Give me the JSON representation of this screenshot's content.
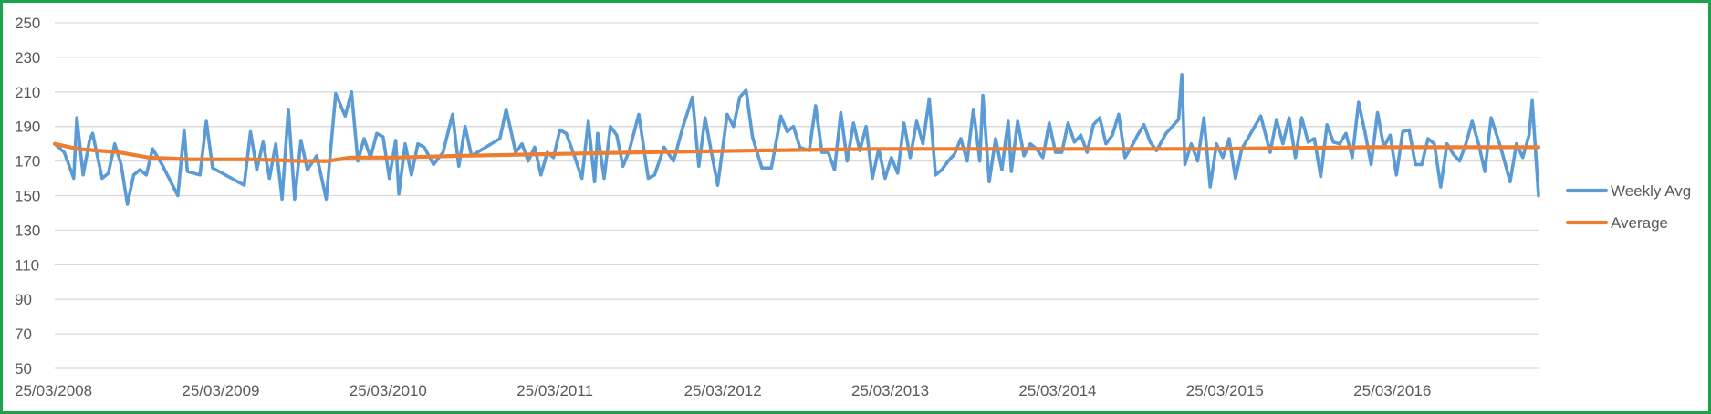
{
  "chart_data": {
    "type": "line",
    "title": "",
    "xlabel": "",
    "ylabel": "",
    "ylim": [
      50,
      250
    ],
    "y_ticks": [
      50,
      70,
      90,
      110,
      130,
      150,
      170,
      190,
      210,
      230,
      250
    ],
    "x_tick_labels": [
      "25/03/2008",
      "25/03/2009",
      "25/03/2010",
      "25/03/2011",
      "25/03/2012",
      "25/03/2013",
      "25/03/2014",
      "25/03/2015",
      "25/03/2016"
    ],
    "x_range": [
      "2008-03-25",
      "2017-03-28"
    ],
    "grid": true,
    "legend": "right",
    "series": [
      {
        "name": "Weekly Avg",
        "color": "#5b9bd5",
        "points": [
          [
            "2008-03-25",
            180
          ],
          [
            "2008-04-15",
            175
          ],
          [
            "2008-05-06",
            160
          ],
          [
            "2008-05-13",
            195
          ],
          [
            "2008-05-27",
            162
          ],
          [
            "2008-06-10",
            182
          ],
          [
            "2008-06-17",
            186
          ],
          [
            "2008-07-08",
            160
          ],
          [
            "2008-07-22",
            163
          ],
          [
            "2008-08-05",
            180
          ],
          [
            "2008-08-19",
            168
          ],
          [
            "2008-09-02",
            145
          ],
          [
            "2008-09-16",
            162
          ],
          [
            "2008-09-30",
            165
          ],
          [
            "2008-10-14",
            162
          ],
          [
            "2008-10-28",
            177
          ],
          [
            "2008-11-18",
            168
          ],
          [
            "2008-12-23",
            150
          ],
          [
            "2009-01-06",
            188
          ],
          [
            "2009-01-13",
            164
          ],
          [
            "2009-02-10",
            162
          ],
          [
            "2009-02-24",
            193
          ],
          [
            "2009-03-10",
            166
          ],
          [
            "2009-05-19",
            156
          ],
          [
            "2009-06-02",
            187
          ],
          [
            "2009-06-16",
            165
          ],
          [
            "2009-06-30",
            181
          ],
          [
            "2009-07-14",
            160
          ],
          [
            "2009-07-28",
            180
          ],
          [
            "2009-08-11",
            148
          ],
          [
            "2009-08-25",
            200
          ],
          [
            "2009-09-08",
            148
          ],
          [
            "2009-09-22",
            182
          ],
          [
            "2009-10-06",
            165
          ],
          [
            "2009-10-27",
            173
          ],
          [
            "2009-11-17",
            148
          ],
          [
            "2009-12-08",
            209
          ],
          [
            "2009-12-29",
            196
          ],
          [
            "2010-01-12",
            210
          ],
          [
            "2010-01-26",
            170
          ],
          [
            "2010-02-09",
            183
          ],
          [
            "2010-02-23",
            172
          ],
          [
            "2010-03-09",
            186
          ],
          [
            "2010-03-23",
            184
          ],
          [
            "2010-04-06",
            160
          ],
          [
            "2010-04-20",
            182
          ],
          [
            "2010-04-27",
            151
          ],
          [
            "2010-05-11",
            180
          ],
          [
            "2010-05-25",
            162
          ],
          [
            "2010-06-08",
            180
          ],
          [
            "2010-06-22",
            178
          ],
          [
            "2010-07-13",
            168
          ],
          [
            "2010-08-03",
            175
          ],
          [
            "2010-08-24",
            197
          ],
          [
            "2010-09-07",
            167
          ],
          [
            "2010-09-21",
            190
          ],
          [
            "2010-10-05",
            173
          ],
          [
            "2010-12-07",
            183
          ],
          [
            "2010-12-21",
            200
          ],
          [
            "2011-01-11",
            175
          ],
          [
            "2011-01-25",
            180
          ],
          [
            "2011-02-08",
            170
          ],
          [
            "2011-02-22",
            178
          ],
          [
            "2011-03-08",
            162
          ],
          [
            "2011-03-22",
            175
          ],
          [
            "2011-04-05",
            172
          ],
          [
            "2011-04-19",
            188
          ],
          [
            "2011-05-03",
            186
          ],
          [
            "2011-05-17",
            176
          ],
          [
            "2011-06-07",
            160
          ],
          [
            "2011-06-21",
            193
          ],
          [
            "2011-07-05",
            158
          ],
          [
            "2011-07-12",
            186
          ],
          [
            "2011-07-26",
            160
          ],
          [
            "2011-08-09",
            190
          ],
          [
            "2011-08-23",
            185
          ],
          [
            "2011-09-06",
            167
          ],
          [
            "2011-09-20",
            176
          ],
          [
            "2011-10-11",
            197
          ],
          [
            "2011-11-01",
            160
          ],
          [
            "2011-11-15",
            162
          ],
          [
            "2011-12-06",
            178
          ],
          [
            "2011-12-27",
            170
          ],
          [
            "2012-01-17",
            190
          ],
          [
            "2012-02-07",
            207
          ],
          [
            "2012-02-21",
            167
          ],
          [
            "2012-03-06",
            195
          ],
          [
            "2012-03-20",
            175
          ],
          [
            "2012-04-03",
            156
          ],
          [
            "2012-04-24",
            197
          ],
          [
            "2012-05-08",
            190
          ],
          [
            "2012-05-22",
            207
          ],
          [
            "2012-06-05",
            211
          ],
          [
            "2012-06-19",
            184
          ],
          [
            "2012-07-10",
            166
          ],
          [
            "2012-07-31",
            166
          ],
          [
            "2012-08-21",
            196
          ],
          [
            "2012-09-04",
            187
          ],
          [
            "2012-09-18",
            190
          ],
          [
            "2012-10-02",
            178
          ],
          [
            "2012-10-23",
            176
          ],
          [
            "2012-11-06",
            202
          ],
          [
            "2012-11-20",
            175
          ],
          [
            "2012-12-04",
            175
          ],
          [
            "2012-12-18",
            165
          ],
          [
            "2013-01-01",
            198
          ],
          [
            "2013-01-15",
            170
          ],
          [
            "2013-01-29",
            192
          ],
          [
            "2013-02-12",
            176
          ],
          [
            "2013-02-26",
            190
          ],
          [
            "2013-03-12",
            160
          ],
          [
            "2013-03-26",
            177
          ],
          [
            "2013-04-09",
            160
          ],
          [
            "2013-04-23",
            172
          ],
          [
            "2013-05-07",
            163
          ],
          [
            "2013-05-21",
            192
          ],
          [
            "2013-06-04",
            172
          ],
          [
            "2013-06-18",
            193
          ],
          [
            "2013-07-02",
            180
          ],
          [
            "2013-07-16",
            206
          ],
          [
            "2013-07-30",
            162
          ],
          [
            "2013-08-13",
            165
          ],
          [
            "2013-08-27",
            170
          ],
          [
            "2013-09-10",
            174
          ],
          [
            "2013-09-24",
            183
          ],
          [
            "2013-10-08",
            170
          ],
          [
            "2013-10-22",
            200
          ],
          [
            "2013-11-05",
            170
          ],
          [
            "2013-11-12",
            208
          ],
          [
            "2013-11-26",
            158
          ],
          [
            "2013-12-10",
            183
          ],
          [
            "2013-12-24",
            165
          ],
          [
            "2014-01-07",
            193
          ],
          [
            "2014-01-14",
            164
          ],
          [
            "2014-01-28",
            193
          ],
          [
            "2014-02-11",
            173
          ],
          [
            "2014-02-25",
            180
          ],
          [
            "2014-03-11",
            177
          ],
          [
            "2014-03-25",
            172
          ],
          [
            "2014-04-08",
            192
          ],
          [
            "2014-04-22",
            175
          ],
          [
            "2014-05-06",
            175
          ],
          [
            "2014-05-20",
            192
          ],
          [
            "2014-06-03",
            181
          ],
          [
            "2014-06-17",
            185
          ],
          [
            "2014-07-01",
            175
          ],
          [
            "2014-07-15",
            191
          ],
          [
            "2014-07-29",
            195
          ],
          [
            "2014-08-12",
            180
          ],
          [
            "2014-08-26",
            185
          ],
          [
            "2014-09-09",
            197
          ],
          [
            "2014-09-23",
            172
          ],
          [
            "2014-10-07",
            178
          ],
          [
            "2014-10-21",
            185
          ],
          [
            "2014-11-04",
            191
          ],
          [
            "2014-11-18",
            181
          ],
          [
            "2014-12-02",
            176
          ],
          [
            "2014-12-23",
            186
          ],
          [
            "2015-01-20",
            194
          ],
          [
            "2015-01-27",
            220
          ],
          [
            "2015-02-03",
            168
          ],
          [
            "2015-02-17",
            180
          ],
          [
            "2015-03-03",
            170
          ],
          [
            "2015-03-17",
            195
          ],
          [
            "2015-03-31",
            155
          ],
          [
            "2015-04-14",
            180
          ],
          [
            "2015-04-28",
            172
          ],
          [
            "2015-05-12",
            183
          ],
          [
            "2015-05-26",
            160
          ],
          [
            "2015-06-09",
            177
          ],
          [
            "2015-07-21",
            196
          ],
          [
            "2015-08-11",
            175
          ],
          [
            "2015-08-25",
            194
          ],
          [
            "2015-09-08",
            180
          ],
          [
            "2015-09-22",
            195
          ],
          [
            "2015-10-06",
            172
          ],
          [
            "2015-10-20",
            195
          ],
          [
            "2015-11-03",
            181
          ],
          [
            "2015-11-17",
            183
          ],
          [
            "2015-12-01",
            161
          ],
          [
            "2015-12-15",
            191
          ],
          [
            "2015-12-29",
            181
          ],
          [
            "2016-01-12",
            180
          ],
          [
            "2016-01-26",
            186
          ],
          [
            "2016-02-09",
            172
          ],
          [
            "2016-02-23",
            204
          ],
          [
            "2016-03-08",
            187
          ],
          [
            "2016-03-22",
            168
          ],
          [
            "2016-04-05",
            198
          ],
          [
            "2016-04-19",
            178
          ],
          [
            "2016-05-03",
            185
          ],
          [
            "2016-05-17",
            162
          ],
          [
            "2016-05-31",
            187
          ],
          [
            "2016-06-14",
            188
          ],
          [
            "2016-06-28",
            168
          ],
          [
            "2016-07-12",
            168
          ],
          [
            "2016-07-26",
            183
          ],
          [
            "2016-08-09",
            180
          ],
          [
            "2016-08-23",
            155
          ],
          [
            "2016-09-06",
            180
          ],
          [
            "2016-09-20",
            174
          ],
          [
            "2016-10-04",
            170
          ],
          [
            "2016-10-18",
            180
          ],
          [
            "2016-11-01",
            193
          ],
          [
            "2016-11-15",
            180
          ],
          [
            "2016-11-29",
            164
          ],
          [
            "2016-12-13",
            195
          ],
          [
            "2017-01-03",
            178
          ],
          [
            "2017-01-24",
            158
          ],
          [
            "2017-02-07",
            180
          ],
          [
            "2017-02-21",
            172
          ],
          [
            "2017-03-07",
            185
          ],
          [
            "2017-03-14",
            205
          ],
          [
            "2017-03-28",
            150
          ]
        ]
      },
      {
        "name": "Average",
        "color": "#ed7d31",
        "points": [
          [
            "2008-03-25",
            180
          ],
          [
            "2008-05-15",
            177
          ],
          [
            "2008-08-15",
            175
          ],
          [
            "2008-10-20",
            172
          ],
          [
            "2009-01-20",
            171
          ],
          [
            "2009-06-10",
            171
          ],
          [
            "2009-09-25",
            170
          ],
          [
            "2009-11-20",
            170
          ],
          [
            "2010-01-10",
            172
          ],
          [
            "2010-04-20",
            172
          ],
          [
            "2010-09-10",
            173
          ],
          [
            "2011-03-25",
            174
          ],
          [
            "2011-10-05",
            175
          ],
          [
            "2012-06-10",
            176
          ],
          [
            "2013-03-25",
            177
          ],
          [
            "2014-03-25",
            177
          ],
          [
            "2015-03-25",
            177
          ],
          [
            "2016-03-25",
            178
          ],
          [
            "2017-03-28",
            178
          ]
        ]
      }
    ]
  }
}
